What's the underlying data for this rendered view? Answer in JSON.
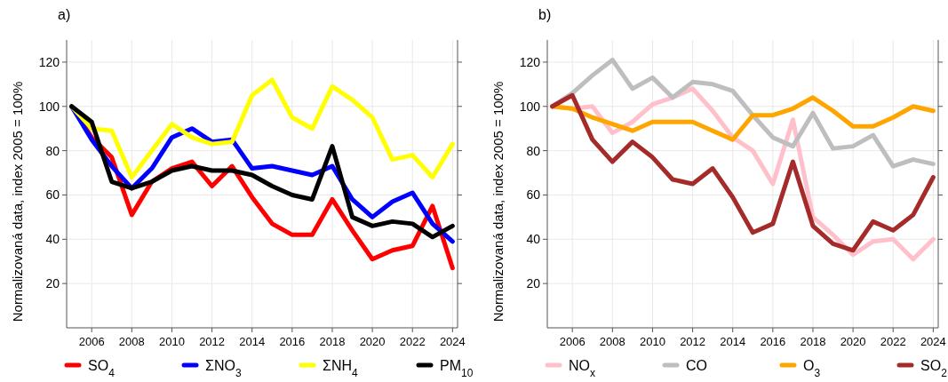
{
  "chart_data": [
    {
      "type": "line",
      "title": "a)",
      "ylabel": "Normalizovaná data, index 2005 = 100%",
      "x": [
        2005,
        2006,
        2007,
        2008,
        2009,
        2010,
        2011,
        2012,
        2013,
        2014,
        2015,
        2016,
        2017,
        2018,
        2019,
        2020,
        2021,
        2022,
        2023,
        2024
      ],
      "xlim": [
        2004.75,
        2024.25
      ],
      "xticks": [
        2006,
        2008,
        2010,
        2012,
        2014,
        2016,
        2018,
        2020,
        2022,
        2024
      ],
      "ylim": [
        0,
        130
      ],
      "yticks": [
        20,
        40,
        60,
        80,
        100,
        120
      ],
      "grid": true,
      "legend": "bottom",
      "line_style": "solid",
      "marker": "none",
      "series": [
        {
          "name": "SO$_{4}$",
          "color": "#ff0000",
          "values": [
            100,
            86,
            77,
            51,
            66,
            72,
            75,
            64,
            73,
            59,
            47,
            42,
            42,
            58,
            44,
            31,
            35,
            37,
            55,
            27
          ]
        },
        {
          "name": "ΣNO$_{3}$",
          "color": "#0000ff",
          "values": [
            100,
            85,
            73,
            63,
            72,
            86,
            90,
            84,
            85,
            72,
            73,
            71,
            69,
            73,
            58,
            50,
            57,
            61,
            47,
            39
          ]
        },
        {
          "name": "ΣNH$_{4}$",
          "color": "#ffff00",
          "values": [
            100,
            90,
            89,
            68,
            80,
            92,
            86,
            83,
            84,
            105,
            112,
            95,
            90,
            109,
            103,
            95,
            76,
            78,
            68,
            83
          ]
        },
        {
          "name": "PM$_{10}$",
          "color": "#000000",
          "values": [
            100,
            93,
            66,
            63,
            66,
            71,
            73,
            71,
            71,
            69,
            64,
            60,
            58,
            82,
            50,
            46,
            48,
            47,
            41,
            46
          ]
        }
      ]
    },
    {
      "type": "line",
      "title": "b)",
      "ylabel": "Normalizovaná data, index 2005 = 100%",
      "x": [
        2005,
        2006,
        2007,
        2008,
        2009,
        2010,
        2011,
        2012,
        2013,
        2014,
        2015,
        2016,
        2017,
        2018,
        2019,
        2020,
        2021,
        2022,
        2023,
        2024
      ],
      "xlim": [
        2004.75,
        2024.25
      ],
      "xticks": [
        2006,
        2008,
        2010,
        2012,
        2014,
        2016,
        2018,
        2020,
        2022,
        2024
      ],
      "ylim": [
        0,
        130
      ],
      "yticks": [
        20,
        40,
        60,
        80,
        100,
        120
      ],
      "grid": true,
      "legend": "bottom",
      "line_style": "solid",
      "marker": "none",
      "series": [
        {
          "name": "NO$_{x}$",
          "color": "#ffc0cb",
          "values": [
            100,
            99,
            100,
            88,
            93,
            101,
            104,
            108,
            98,
            86,
            80,
            65,
            94,
            50,
            42,
            33,
            39,
            40,
            31,
            40
          ]
        },
        {
          "name": "CO",
          "color": "#bebebe",
          "values": [
            100,
            106,
            114,
            121,
            108,
            113,
            104,
            111,
            110,
            107,
            96,
            86,
            82,
            97,
            81,
            82,
            87,
            73,
            76,
            74
          ]
        },
        {
          "name": "O$_{3}$",
          "color": "#ffa500",
          "values": [
            100,
            99,
            95,
            92,
            89,
            93,
            93,
            93,
            89,
            85,
            96,
            96,
            99,
            104,
            98,
            91,
            91,
            95,
            100,
            98
          ]
        },
        {
          "name": "SO$_{2}$",
          "color": "#a52a2a",
          "values": [
            100,
            105,
            85,
            75,
            84,
            77,
            67,
            65,
            72,
            59,
            43,
            47,
            75,
            46,
            38,
            35,
            48,
            44,
            51,
            68
          ]
        }
      ]
    }
  ]
}
